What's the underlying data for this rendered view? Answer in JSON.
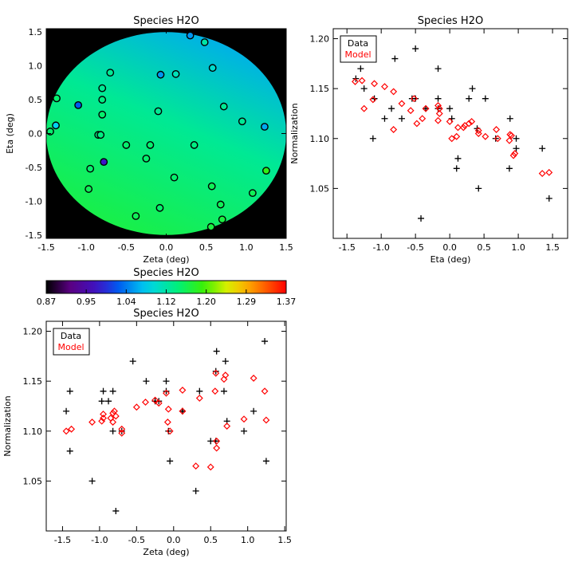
{
  "chart_data": [
    {
      "id": "map",
      "type": "heatmap",
      "title": "Species H2O",
      "xlabel": "Zeta (deg)",
      "ylabel": "Eta (deg)",
      "xlim": [
        -1.5,
        1.5
      ],
      "ylim": [
        -1.55,
        1.55
      ],
      "xticks": [
        -1.5,
        -1.0,
        -0.5,
        0.0,
        0.5,
        1.0,
        1.5
      ],
      "yticks": [
        -1.5,
        -1.0,
        -0.5,
        0.0,
        0.5,
        1.0,
        1.5
      ],
      "background_color": "#000000",
      "circle_radius": 1.5,
      "points": [
        {
          "x": 0.3,
          "y": 1.45,
          "v": 1.05
        },
        {
          "x": 0.48,
          "y": 1.35,
          "v": 1.12
        },
        {
          "x": -0.07,
          "y": 0.87,
          "v": 1.05
        },
        {
          "x": 0.12,
          "y": 0.88,
          "v": 1.11
        },
        {
          "x": 0.58,
          "y": 0.97,
          "v": 1.1
        },
        {
          "x": -0.7,
          "y": 0.9,
          "v": 1.13
        },
        {
          "x": -1.37,
          "y": 0.52,
          "v": 1.15
        },
        {
          "x": -1.1,
          "y": 0.42,
          "v": 1.02
        },
        {
          "x": -0.8,
          "y": 0.67,
          "v": 1.13
        },
        {
          "x": -0.8,
          "y": 0.5,
          "v": 1.14
        },
        {
          "x": -0.8,
          "y": 0.28,
          "v": 1.15
        },
        {
          "x": -0.1,
          "y": 0.33,
          "v": 1.13
        },
        {
          "x": 0.72,
          "y": 0.4,
          "v": 1.13
        },
        {
          "x": 0.95,
          "y": 0.18,
          "v": 1.13
        },
        {
          "x": 1.23,
          "y": 0.1,
          "v": 1.06
        },
        {
          "x": -1.38,
          "y": 0.12,
          "v": 1.08
        },
        {
          "x": -1.45,
          "y": 0.03,
          "v": 1.15
        },
        {
          "x": -0.85,
          "y": -0.02,
          "v": 1.14
        },
        {
          "x": -0.82,
          "y": -0.02,
          "v": 1.14
        },
        {
          "x": -0.5,
          "y": -0.17,
          "v": 1.15
        },
        {
          "x": -0.2,
          "y": -0.17,
          "v": 1.15
        },
        {
          "x": -0.25,
          "y": -0.37,
          "v": 1.15
        },
        {
          "x": 0.35,
          "y": -0.17,
          "v": 1.14
        },
        {
          "x": -0.78,
          "y": -0.42,
          "v": 0.98
        },
        {
          "x": -0.95,
          "y": -0.52,
          "v": 1.15
        },
        {
          "x": 0.1,
          "y": -0.65,
          "v": 1.15
        },
        {
          "x": 1.25,
          "y": -0.55,
          "v": 1.19
        },
        {
          "x": -0.97,
          "y": -0.82,
          "v": 1.16
        },
        {
          "x": 0.57,
          "y": -0.78,
          "v": 1.16
        },
        {
          "x": 1.08,
          "y": -0.88,
          "v": 1.16
        },
        {
          "x": 0.68,
          "y": -1.05,
          "v": 1.16
        },
        {
          "x": -0.08,
          "y": -1.1,
          "v": 1.15
        },
        {
          "x": -0.38,
          "y": -1.22,
          "v": 1.16
        },
        {
          "x": 0.7,
          "y": -1.27,
          "v": 1.17
        },
        {
          "x": 0.56,
          "y": -1.38,
          "v": 1.17
        }
      ]
    },
    {
      "id": "eta",
      "type": "scatter",
      "title": "Species H2O",
      "xlabel": "Eta (deg)",
      "ylabel": "Normalization",
      "xlim": [
        -1.7,
        1.72
      ],
      "ylim": [
        1.0,
        1.21
      ],
      "xticks": [
        -1.5,
        -1.0,
        -0.5,
        0.0,
        0.5,
        1.0,
        1.5
      ],
      "yticks": [
        1.05,
        1.1,
        1.15,
        1.2
      ],
      "legend": [
        "Data",
        "Model"
      ],
      "legend_position": "top-left",
      "series": [
        {
          "name": "Data",
          "marker": "plus",
          "color": "#000000",
          "points": [
            [
              -1.37,
              1.16
            ],
            [
              -1.3,
              1.17
            ],
            [
              -1.25,
              1.15
            ],
            [
              -1.1,
              1.14
            ],
            [
              -1.12,
              1.1
            ],
            [
              -0.95,
              1.12
            ],
            [
              -0.85,
              1.13
            ],
            [
              -0.8,
              1.18
            ],
            [
              -0.7,
              1.12
            ],
            [
              -0.55,
              1.14
            ],
            [
              -0.5,
              1.19
            ],
            [
              -0.5,
              1.14
            ],
            [
              -0.42,
              1.02
            ],
            [
              -0.35,
              1.13
            ],
            [
              -0.17,
              1.17
            ],
            [
              -0.17,
              1.14
            ],
            [
              -0.17,
              1.13
            ],
            [
              0.0,
              1.13
            ],
            [
              0.03,
              1.12
            ],
            [
              0.1,
              1.07
            ],
            [
              0.12,
              1.08
            ],
            [
              0.28,
              1.14
            ],
            [
              0.33,
              1.15
            ],
            [
              0.4,
              1.11
            ],
            [
              0.42,
              1.05
            ],
            [
              0.52,
              1.14
            ],
            [
              0.67,
              1.1
            ],
            [
              0.88,
              1.12
            ],
            [
              0.87,
              1.07
            ],
            [
              0.97,
              1.09
            ],
            [
              0.97,
              1.1
            ],
            [
              1.35,
              1.09
            ],
            [
              1.45,
              1.04
            ]
          ]
        },
        {
          "name": "Model",
          "marker": "diamond",
          "color": "#ff0000",
          "points": [
            [
              -1.38,
              1.157
            ],
            [
              -1.28,
              1.158
            ],
            [
              -1.25,
              1.13
            ],
            [
              -1.1,
              1.155
            ],
            [
              -1.12,
              1.139
            ],
            [
              -0.95,
              1.152
            ],
            [
              -0.82,
              1.147
            ],
            [
              -0.82,
              1.109
            ],
            [
              -0.7,
              1.135
            ],
            [
              -0.57,
              1.128
            ],
            [
              -0.52,
              1.14
            ],
            [
              -0.48,
              1.115
            ],
            [
              -0.4,
              1.12
            ],
            [
              -0.35,
              1.13
            ],
            [
              -0.17,
              1.133
            ],
            [
              -0.15,
              1.125
            ],
            [
              -0.15,
              1.13
            ],
            [
              -0.17,
              1.118
            ],
            [
              0.0,
              1.117
            ],
            [
              0.03,
              1.1
            ],
            [
              0.1,
              1.102
            ],
            [
              0.12,
              1.111
            ],
            [
              0.2,
              1.111
            ],
            [
              0.22,
              1.113
            ],
            [
              0.28,
              1.115
            ],
            [
              0.32,
              1.117
            ],
            [
              0.42,
              1.105
            ],
            [
              0.42,
              1.108
            ],
            [
              0.52,
              1.102
            ],
            [
              0.68,
              1.109
            ],
            [
              0.7,
              1.1
            ],
            [
              0.88,
              1.104
            ],
            [
              0.9,
              1.103
            ],
            [
              0.87,
              1.098
            ],
            [
              0.93,
              1.083
            ],
            [
              0.95,
              1.085
            ],
            [
              1.35,
              1.065
            ],
            [
              1.45,
              1.066
            ]
          ]
        }
      ]
    },
    {
      "id": "colorbar",
      "type": "colorbar",
      "title": "Species H2O",
      "range": [
        0.87,
        1.37
      ],
      "tick_labels": [
        "0.87",
        "0.95",
        "1.04",
        "1.12",
        "1.20",
        "1.29",
        "1.37"
      ]
    },
    {
      "id": "zeta",
      "type": "scatter",
      "title": "Species H2O",
      "xlabel": "Zeta (deg)",
      "ylabel": "Normalization",
      "xlim": [
        -1.72,
        1.52
      ],
      "ylim": [
        1.0,
        1.21
      ],
      "xticks": [
        -1.5,
        -1.0,
        -0.5,
        0.0,
        0.5,
        1.0,
        1.5
      ],
      "yticks": [
        1.05,
        1.1,
        1.15,
        1.2
      ],
      "legend": [
        "Data",
        "Model"
      ],
      "legend_position": "top-left",
      "series": [
        {
          "name": "Data",
          "marker": "plus",
          "color": "#000000",
          "points": [
            [
              -1.45,
              1.12
            ],
            [
              -1.4,
              1.14
            ],
            [
              -1.4,
              1.08
            ],
            [
              -1.1,
              1.05
            ],
            [
              -0.97,
              1.13
            ],
            [
              -0.95,
              1.14
            ],
            [
              -0.88,
              1.13
            ],
            [
              -0.82,
              1.14
            ],
            [
              -0.82,
              1.1
            ],
            [
              -0.78,
              1.02
            ],
            [
              -0.7,
              1.1
            ],
            [
              -0.55,
              1.17
            ],
            [
              -0.37,
              1.15
            ],
            [
              -0.25,
              1.13
            ],
            [
              -0.2,
              1.13
            ],
            [
              -0.1,
              1.15
            ],
            [
              -0.1,
              1.14
            ],
            [
              -0.07,
              1.1
            ],
            [
              -0.05,
              1.07
            ],
            [
              0.12,
              1.12
            ],
            [
              0.12,
              1.12
            ],
            [
              0.3,
              1.04
            ],
            [
              0.35,
              1.14
            ],
            [
              0.5,
              1.09
            ],
            [
              0.57,
              1.09
            ],
            [
              0.57,
              1.16
            ],
            [
              0.58,
              1.18
            ],
            [
              0.68,
              1.14
            ],
            [
              0.7,
              1.17
            ],
            [
              0.72,
              1.11
            ],
            [
              0.95,
              1.1
            ],
            [
              1.08,
              1.12
            ],
            [
              1.23,
              1.19
            ],
            [
              1.25,
              1.07
            ]
          ]
        },
        {
          "name": "Model",
          "marker": "diamond",
          "color": "#ff0000",
          "points": [
            [
              -1.45,
              1.1
            ],
            [
              -1.38,
              1.102
            ],
            [
              -1.1,
              1.109
            ],
            [
              -0.97,
              1.11
            ],
            [
              -0.95,
              1.113
            ],
            [
              -0.95,
              1.117
            ],
            [
              -0.85,
              1.113
            ],
            [
              -0.82,
              1.109
            ],
            [
              -0.82,
              1.118
            ],
            [
              -0.8,
              1.12
            ],
            [
              -0.78,
              1.115
            ],
            [
              -0.7,
              1.098
            ],
            [
              -0.7,
              1.102
            ],
            [
              -0.5,
              1.124
            ],
            [
              -0.38,
              1.129
            ],
            [
              -0.25,
              1.131
            ],
            [
              -0.2,
              1.128
            ],
            [
              -0.1,
              1.138
            ],
            [
              -0.08,
              1.109
            ],
            [
              -0.07,
              1.122
            ],
            [
              -0.05,
              1.1
            ],
            [
              0.12,
              1.141
            ],
            [
              0.12,
              1.12
            ],
            [
              0.3,
              1.065
            ],
            [
              0.35,
              1.133
            ],
            [
              0.5,
              1.064
            ],
            [
              0.56,
              1.14
            ],
            [
              0.57,
              1.158
            ],
            [
              0.58,
              1.09
            ],
            [
              0.58,
              1.083
            ],
            [
              0.68,
              1.152
            ],
            [
              0.7,
              1.156
            ],
            [
              0.72,
              1.105
            ],
            [
              0.95,
              1.112
            ],
            [
              1.08,
              1.153
            ],
            [
              1.23,
              1.14
            ],
            [
              1.25,
              1.111
            ]
          ]
        }
      ]
    }
  ]
}
